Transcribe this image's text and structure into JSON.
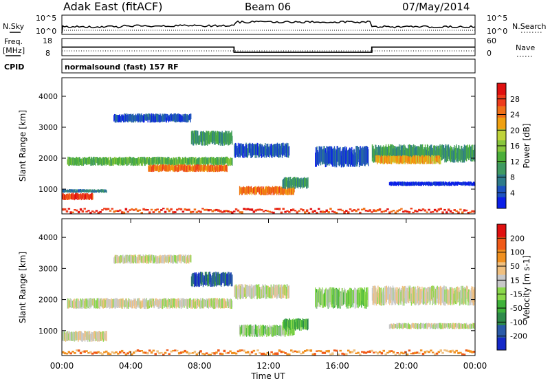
{
  "header": {
    "station": "Adak East (fitACF)",
    "beam": "Beam 06",
    "date": "07/May/2014"
  },
  "status_panels": {
    "nsky_label": "N.Sky",
    "nsky_ticks": [
      "10^5",
      "10^0"
    ],
    "nsearch_label": "N.Search",
    "nsearch_ticks": [
      "10^5",
      "10^0"
    ],
    "freq_label": "Freq.",
    "freq_unit": "[MHz]",
    "freq_ticks": [
      "18",
      "8"
    ],
    "nave_label": "Nave",
    "nave_ticks": [
      "60",
      "0"
    ],
    "cpid_label": "CPID",
    "cpid_text": "normalsound (fast) 157 RF",
    "freq_steps": [
      [
        0,
        13
      ],
      [
        10,
        13
      ],
      [
        10,
        10
      ],
      [
        18,
        10
      ],
      [
        18,
        13
      ],
      [
        24,
        13
      ]
    ]
  },
  "chart_data": [
    {
      "type": "heatmap",
      "name": "power",
      "xlabel": "",
      "ylabel": "Slant Range [km]",
      "xlim": [
        0,
        24
      ],
      "ylim": [
        200,
        4600
      ],
      "yticks": [
        1000,
        2000,
        3000,
        4000
      ],
      "colorbar": {
        "label": "Power [dB]",
        "ticks": [
          "4",
          "8",
          "12",
          "16",
          "20",
          "24",
          "28"
        ],
        "colors": [
          "#0b1fe8",
          "#1d52c0",
          "#2e7b8a",
          "#3f9a62",
          "#4caf3a",
          "#88c63c",
          "#bfd33a",
          "#f0a010",
          "#f07018",
          "#ee3c1c",
          "#e01010"
        ]
      },
      "echo_regions": [
        {
          "t": [
            0.0,
            1.8
          ],
          "range": [
            640,
            880
          ],
          "level": 9
        },
        {
          "t": [
            0.0,
            2.6
          ],
          "range": [
            880,
            1000
          ],
          "level": 2
        },
        {
          "t": [
            0.3,
            9.9
          ],
          "range": [
            1750,
            2050
          ],
          "level": 4
        },
        {
          "t": [
            5.0,
            9.6
          ],
          "range": [
            1550,
            1800
          ],
          "level": 8
        },
        {
          "t": [
            3.0,
            7.5
          ],
          "range": [
            3150,
            3450
          ],
          "level": 1
        },
        {
          "t": [
            7.5,
            9.9
          ],
          "range": [
            2400,
            2900
          ],
          "level": 3
        },
        {
          "t": [
            10.0,
            13.2
          ],
          "range": [
            2000,
            2500
          ],
          "level": 1
        },
        {
          "t": [
            10.3,
            13.5
          ],
          "range": [
            800,
            1100
          ],
          "level": 8
        },
        {
          "t": [
            12.8,
            14.3
          ],
          "range": [
            1000,
            1400
          ],
          "level": 3
        },
        {
          "t": [
            14.7,
            17.8
          ],
          "range": [
            1700,
            2400
          ],
          "level": 1
        },
        {
          "t": [
            18.0,
            24.0
          ],
          "range": [
            1850,
            2450
          ],
          "level": 3
        },
        {
          "t": [
            18.2,
            22.0
          ],
          "range": [
            1800,
            2100
          ],
          "level": 7
        },
        {
          "t": [
            19.0,
            24.0
          ],
          "range": [
            1100,
            1250
          ],
          "level": 0
        },
        {
          "t": [
            0.0,
            24.0
          ],
          "range": [
            200,
            400
          ],
          "level": 9
        }
      ]
    },
    {
      "type": "heatmap",
      "name": "velocity",
      "xlabel": "Time UT",
      "ylabel": "Slant Range [km]",
      "xlim": [
        0,
        24
      ],
      "ylim": [
        200,
        4600
      ],
      "yticks": [
        1000,
        2000,
        3000,
        4000
      ],
      "xticks": [
        "00:00",
        "04:00",
        "08:00",
        "12:00",
        "16:00",
        "20:00",
        "00:00"
      ],
      "colorbar": {
        "label": "Velocity [m s-1]",
        "ticks": [
          "200",
          "100",
          "50",
          "15",
          "-15",
          "-50",
          "-100",
          "-200"
        ],
        "colors": [
          "#1428c8",
          "#2a5aa8",
          "#2e8a4a",
          "#3fb23a",
          "#8ad84a",
          "#c8c8c8",
          "#f0c080",
          "#f09020",
          "#f05a18",
          "#e01010"
        ]
      },
      "echo_regions": [
        {
          "t": [
            0.0,
            2.6
          ],
          "range": [
            640,
            1000
          ],
          "level": 5
        },
        {
          "t": [
            0.3,
            9.9
          ],
          "range": [
            1700,
            2050
          ],
          "level": 5
        },
        {
          "t": [
            3.0,
            7.5
          ],
          "range": [
            3150,
            3450
          ],
          "level": 5
        },
        {
          "t": [
            7.5,
            9.9
          ],
          "range": [
            2400,
            2900
          ],
          "level": 1
        },
        {
          "t": [
            10.0,
            13.2
          ],
          "range": [
            2000,
            2500
          ],
          "level": 5
        },
        {
          "t": [
            10.3,
            13.5
          ],
          "range": [
            800,
            1200
          ],
          "level": 4
        },
        {
          "t": [
            12.8,
            14.3
          ],
          "range": [
            1000,
            1400
          ],
          "level": 3
        },
        {
          "t": [
            14.7,
            17.8
          ],
          "range": [
            1700,
            2400
          ],
          "level": 4
        },
        {
          "t": [
            18.0,
            24.0
          ],
          "range": [
            1800,
            2450
          ],
          "level": 5
        },
        {
          "t": [
            19.0,
            24.0
          ],
          "range": [
            1050,
            1250
          ],
          "level": 5
        },
        {
          "t": [
            0.0,
            24.0
          ],
          "range": [
            200,
            400
          ],
          "level": 7
        }
      ]
    }
  ]
}
